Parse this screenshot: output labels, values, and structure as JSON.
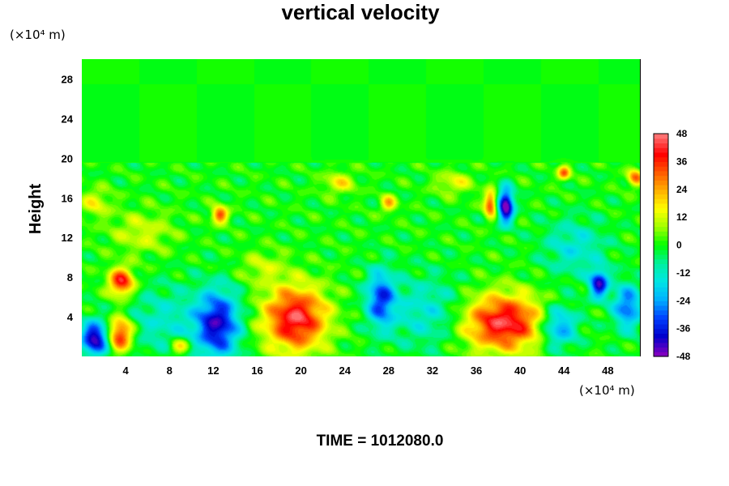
{
  "chart_data": {
    "type": "heatmap",
    "title": "vertical velocity",
    "xlabel": "",
    "ylabel": "Height",
    "x_unit": "(×10⁴ m)",
    "y_unit": "(×10⁴ m)",
    "xlim": [
      0,
      51
    ],
    "ylim": [
      0,
      30
    ],
    "x_ticks": [
      4,
      8,
      12,
      16,
      20,
      24,
      28,
      32,
      36,
      40,
      44,
      48
    ],
    "y_ticks": [
      4,
      8,
      12,
      16,
      20,
      24,
      28
    ],
    "colorbar": {
      "ticks": [
        48,
        36,
        24,
        12,
        0,
        -12,
        -24,
        -36,
        -48
      ],
      "range": [
        -48,
        48
      ],
      "colors_low_to_high": [
        "#7f00bf",
        "#0000cc",
        "#0040ff",
        "#00b0ff",
        "#00e5e5",
        "#00f0a0",
        "#00ff00",
        "#a0ff00",
        "#ffff00",
        "#ffb000",
        "#ff5a00",
        "#ff0000",
        "#ff7070"
      ]
    },
    "grid": false,
    "features": [
      {
        "x": 19.5,
        "y": 3.8,
        "value": 44,
        "sx": 2.0,
        "sy": 2.3
      },
      {
        "x": 38.5,
        "y": 3.4,
        "value": 44,
        "sx": 2.6,
        "sy": 2.0
      },
      {
        "x": 12.4,
        "y": 3.2,
        "value": -40,
        "sx": 1.4,
        "sy": 2.4
      },
      {
        "x": 27.3,
        "y": 5.8,
        "value": -32,
        "sx": 0.9,
        "sy": 2.0
      },
      {
        "x": 1.2,
        "y": 1.8,
        "value": -44,
        "sx": 0.9,
        "sy": 1.2
      },
      {
        "x": 3.5,
        "y": 2.2,
        "value": 40,
        "sx": 0.8,
        "sy": 1.2
      },
      {
        "x": 3.6,
        "y": 7.5,
        "value": 40,
        "sx": 0.8,
        "sy": 1.0
      },
      {
        "x": 38.7,
        "y": 15.2,
        "value": -50,
        "sx": 0.5,
        "sy": 1.2
      },
      {
        "x": 37.3,
        "y": 15.4,
        "value": 36,
        "sx": 0.4,
        "sy": 0.9
      },
      {
        "x": 12.6,
        "y": 14.3,
        "value": 34,
        "sx": 0.5,
        "sy": 0.6
      },
      {
        "x": 47.2,
        "y": 7.3,
        "value": -40,
        "sx": 0.6,
        "sy": 1.0
      },
      {
        "x": 43.5,
        "y": 3.0,
        "value": -28,
        "sx": 1.2,
        "sy": 1.5
      },
      {
        "x": 49.8,
        "y": 5.0,
        "value": -30,
        "sx": 0.9,
        "sy": 1.6
      },
      {
        "x": 28.0,
        "y": 15.4,
        "value": 22,
        "sx": 0.5,
        "sy": 0.6
      },
      {
        "x": 44.0,
        "y": 18.5,
        "value": 30,
        "sx": 0.4,
        "sy": 0.5
      },
      {
        "x": 50.5,
        "y": 18.0,
        "value": 30,
        "sx": 0.5,
        "sy": 0.6
      },
      {
        "x": 5.5,
        "y": 12.5,
        "value": 12,
        "sx": 2.0,
        "sy": 1.5
      },
      {
        "x": 16.5,
        "y": 9.0,
        "value": 10,
        "sx": 1.5,
        "sy": 1.2
      },
      {
        "x": 7.5,
        "y": 3.5,
        "value": -12,
        "sx": 2.5,
        "sy": 2.5
      },
      {
        "x": 31.5,
        "y": 4.5,
        "value": -14,
        "sx": 2.5,
        "sy": 2.5
      },
      {
        "x": 45.0,
        "y": 11.0,
        "value": -14,
        "sx": 2.0,
        "sy": 2.0
      },
      {
        "x": 1.2,
        "y": 15.5,
        "value": 14,
        "sx": 1.0,
        "sy": 1.0
      },
      {
        "x": 23.5,
        "y": 17.5,
        "value": 16,
        "sx": 1.0,
        "sy": 0.8
      },
      {
        "x": 34.0,
        "y": 17.5,
        "value": 14,
        "sx": 1.2,
        "sy": 0.8
      },
      {
        "x": 9.0,
        "y": 1.0,
        "value": 22,
        "sx": 0.7,
        "sy": 0.6
      }
    ]
  },
  "footer": {
    "time_text": "TIME = 1012080.0"
  }
}
